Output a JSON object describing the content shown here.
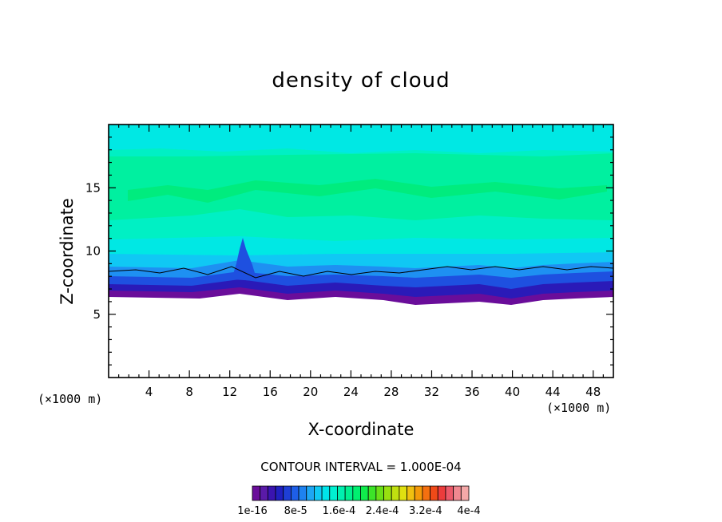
{
  "chart_data": {
    "type": "heatmap",
    "title": "density of cloud",
    "xlabel": "X-coordinate",
    "ylabel": "Z-coordinate",
    "x_unit_left": "(×1000 m)",
    "x_unit_right": "(×1000 m)",
    "xlim": [
      0,
      50
    ],
    "ylim": [
      0,
      20
    ],
    "x_ticks": [
      4,
      8,
      12,
      16,
      20,
      24,
      28,
      32,
      36,
      40,
      44,
      48
    ],
    "y_ticks": [
      5,
      10,
      15
    ],
    "contour_interval": "CONTOUR INTERVAL = 1.000E-04",
    "colorbar": {
      "colors": [
        "#6a0d9a",
        "#5a1aa8",
        "#3a14b0",
        "#2020c0",
        "#1e3fd6",
        "#1e5ee8",
        "#1e82f0",
        "#1ea6f4",
        "#10c8f4",
        "#00e4ea",
        "#00f0d2",
        "#00f0b0",
        "#00f090",
        "#00f070",
        "#10ec4c",
        "#3ce428",
        "#6ae018",
        "#98e010",
        "#c0e010",
        "#e0e010",
        "#f0c010",
        "#f49a0a",
        "#f47010",
        "#f04a18",
        "#ec3c3c",
        "#ec5a6a",
        "#f08890",
        "#f4a8a8"
      ],
      "labels": [
        "1e-16",
        "8e-5",
        "1.6e-4",
        "2.4e-4",
        "3.2e-4",
        "4e-4"
      ]
    }
  }
}
